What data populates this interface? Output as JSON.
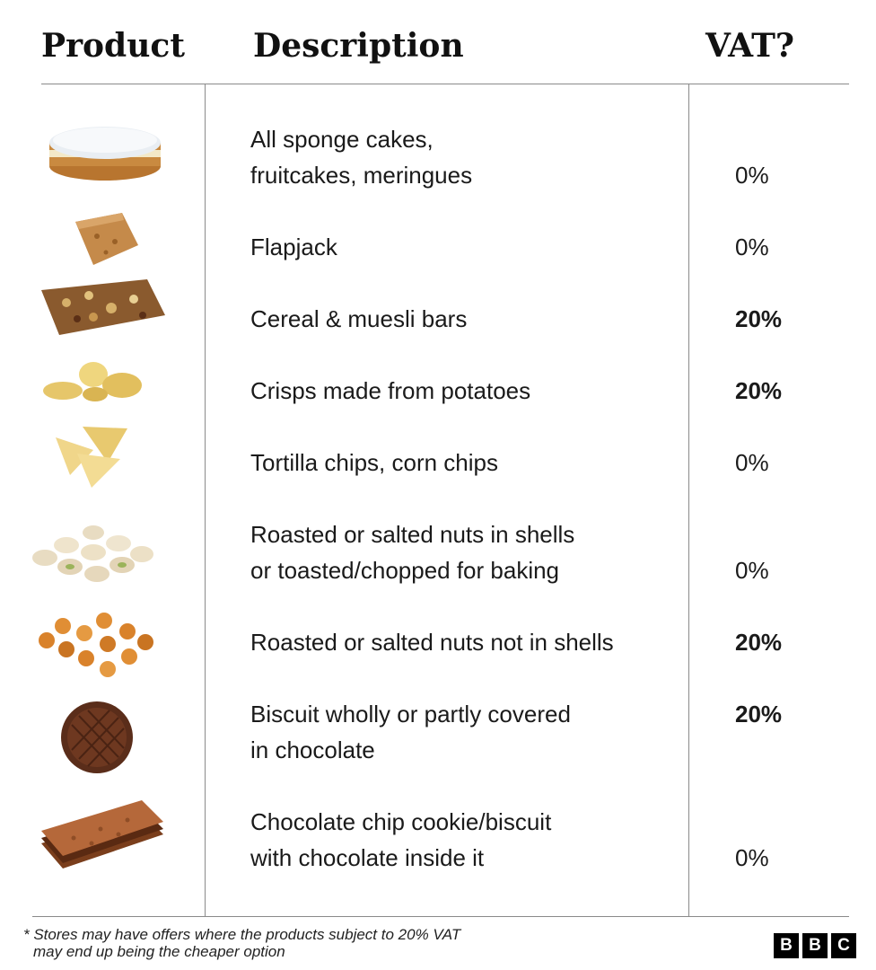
{
  "header": {
    "product": "Product",
    "description": "Description",
    "vat": "VAT?"
  },
  "rows": [
    {
      "line1": "All sponge cakes,",
      "line2": "fruitcakes, meringues",
      "vat": "0%",
      "image_icon": "sponge-cake-icon"
    },
    {
      "line1": "Flapjack",
      "line2": "",
      "vat": "0%",
      "image_icon": "flapjack-icon"
    },
    {
      "line1": "Cereal & muesli bars",
      "line2": "",
      "vat": "20%",
      "image_icon": "cereal-bar-icon"
    },
    {
      "line1": "Crisps made from potatoes",
      "line2": "",
      "vat": "20%",
      "image_icon": "potato-crisps-icon"
    },
    {
      "line1": "Tortilla chips, corn chips",
      "line2": "",
      "vat": "0%",
      "image_icon": "tortilla-chips-icon"
    },
    {
      "line1": "Roasted or salted nuts in shells",
      "line2": "or toasted/chopped for baking",
      "vat": "0%",
      "image_icon": "pistachios-icon"
    },
    {
      "line1": "Roasted or salted nuts not in shells",
      "line2": "",
      "vat": "20%",
      "image_icon": "coated-peanuts-icon"
    },
    {
      "line1": "Biscuit wholly or partly covered",
      "line2": "in chocolate",
      "vat": "20%",
      "image_icon": "chocolate-biscuit-icon"
    },
    {
      "line1": "Chocolate chip cookie/biscuit",
      "line2": "with chocolate inside it",
      "vat": "0%",
      "image_icon": "sandwich-biscuit-icon"
    }
  ],
  "footnote": {
    "line1": "* Stores may have offers where the products subject to 20% VAT",
    "line2": "may end up being the cheaper option"
  },
  "logo": [
    "B",
    "B",
    "C"
  ],
  "colors": {
    "rule": "#8a8a8a",
    "text": "#1a1a1a",
    "logo_bg": "#000000"
  }
}
